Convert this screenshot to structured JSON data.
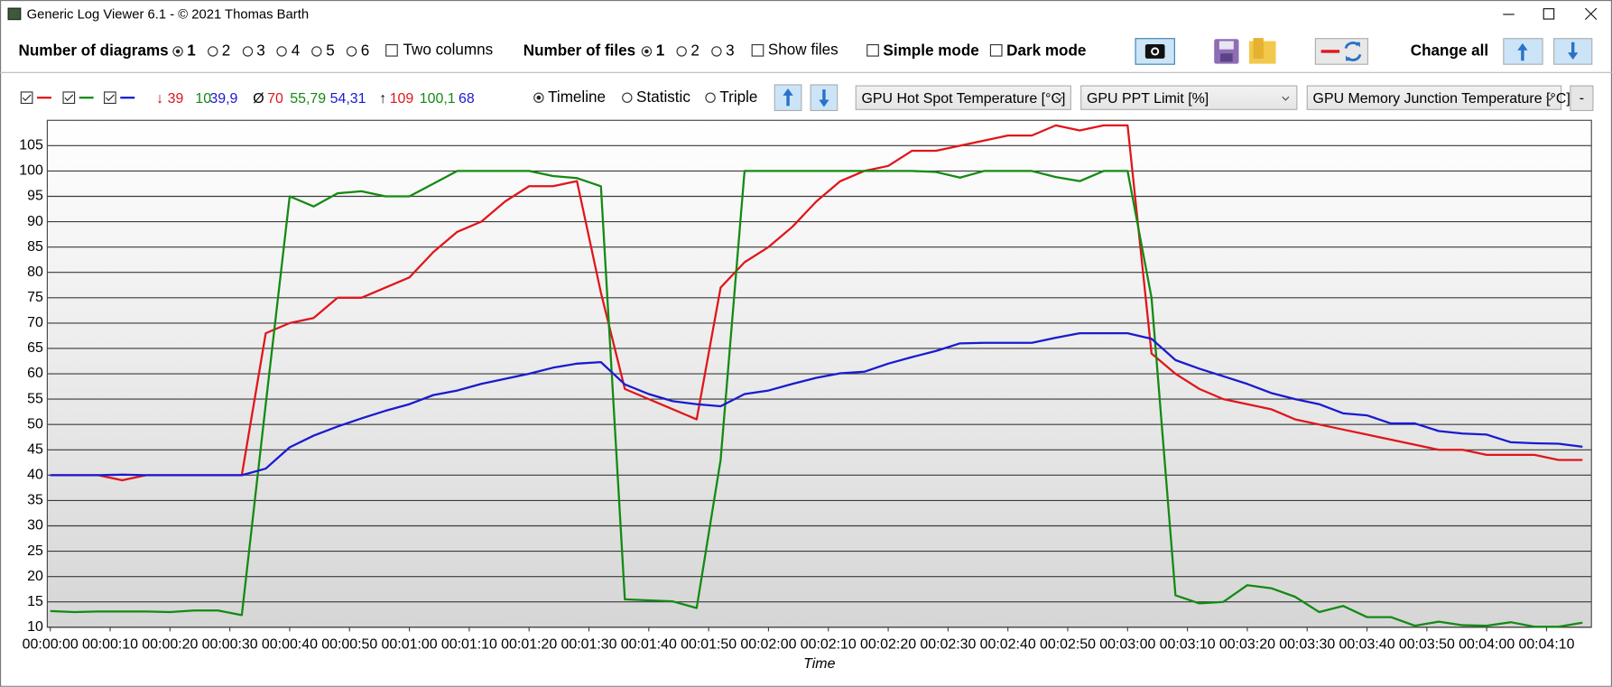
{
  "window": {
    "title": "Generic Log Viewer 6.1 - © 2021 Thomas Barth"
  },
  "toolbar": {
    "diagrams_label": "Number of diagrams",
    "diagram_options": [
      "1",
      "2",
      "3",
      "4",
      "5",
      "6"
    ],
    "two_columns": "Two columns",
    "files_label": "Number of files",
    "file_options": [
      "1",
      "2",
      "3"
    ],
    "show_files": "Show files",
    "simple_mode": "Simple mode",
    "dark_mode": "Dark mode",
    "change_all": "Change all"
  },
  "diagram_bar": {
    "min_symbol": "↓",
    "min_values": [
      "39",
      "10",
      "39,9"
    ],
    "avg_symbol": "Ø",
    "avg_values": [
      "70",
      "55,79",
      "54,31"
    ],
    "max_symbol": "↑",
    "max_values": [
      "109",
      "100,1",
      "68"
    ],
    "views": [
      "Timeline",
      "Statistic",
      "Triple"
    ],
    "remove": "-"
  },
  "chart_data": {
    "type": "line",
    "x_label": "Time",
    "x": [
      0,
      4,
      8,
      12,
      16,
      20,
      24,
      28,
      32,
      36,
      40,
      44,
      48,
      52,
      56,
      60,
      64,
      68,
      72,
      76,
      80,
      84,
      88,
      92,
      96,
      100,
      104,
      108,
      112,
      116,
      120,
      124,
      128,
      132,
      136,
      140,
      144,
      148,
      152,
      156,
      160,
      164,
      168,
      172,
      176,
      180,
      184,
      188,
      192,
      196,
      200,
      204,
      208,
      212,
      216,
      220,
      224,
      228,
      232,
      236,
      240,
      244,
      248,
      252,
      256
    ],
    "series": [
      {
        "name": "GPU Hot Spot Temperature [°C]",
        "color": "#e0161b",
        "values": [
          40,
          40,
          40,
          39,
          40,
          40,
          40,
          40,
          40,
          68,
          70,
          71,
          75,
          75,
          77,
          79,
          84,
          88,
          90,
          94,
          97,
          97,
          98,
          76,
          57,
          55,
          53,
          51,
          77,
          82,
          85,
          89,
          94,
          98,
          100,
          101,
          104,
          104,
          105,
          106,
          107,
          107,
          109,
          108,
          109,
          109,
          64,
          60,
          57,
          55,
          54,
          53,
          51,
          50,
          49,
          48,
          47,
          46,
          45,
          45,
          44,
          44,
          44,
          43,
          43
        ]
      },
      {
        "name": "GPU PPT Limit [%]",
        "color": "#138a13",
        "values": [
          13.2,
          13,
          13.1,
          13.1,
          13.1,
          13,
          13.3,
          13.3,
          12.4,
          54,
          95,
          93,
          95.6,
          96,
          95,
          95,
          97.5,
          100,
          100,
          100,
          100,
          99,
          98.6,
          97,
          15.5,
          15.3,
          15.1,
          13.8,
          43,
          100,
          100,
          100,
          100,
          100,
          100,
          100,
          100,
          99.8,
          98.7,
          100,
          100,
          100,
          98.8,
          98,
          100,
          100,
          75,
          16.3,
          14.7,
          15,
          18.3,
          17.7,
          16,
          13,
          14.2,
          12,
          12,
          10.3,
          11.1,
          10.4,
          10.3,
          11,
          10.1,
          10.1,
          10.9
        ]
      },
      {
        "name": "GPU Memory Junction Temperature [°C]",
        "color": "#1a1ad0",
        "values": [
          40,
          40,
          40,
          40.1,
          40,
          40,
          40,
          40,
          40,
          41.3,
          45.5,
          47.8,
          49.6,
          51.2,
          52.7,
          54,
          55.8,
          56.7,
          58,
          59,
          60,
          61.2,
          62,
          62.3,
          57.9,
          56,
          54.6,
          54,
          53.6,
          56,
          56.7,
          58,
          59.2,
          60.1,
          60.4,
          62,
          63.3,
          64.5,
          66,
          66.1,
          66.1,
          66.1,
          67.1,
          68,
          68,
          68,
          66.9,
          62.7,
          61,
          59.5,
          58,
          56.2,
          55,
          54,
          52.2,
          51.8,
          50.2,
          50.2,
          48.7,
          48.2,
          48,
          46.5,
          46.3,
          46.2,
          45.6
        ]
      }
    ],
    "xlim": [
      -0.5,
      257.5
    ],
    "ylim": [
      10,
      110
    ],
    "yticks": [
      10,
      15,
      20,
      25,
      30,
      35,
      40,
      45,
      50,
      55,
      60,
      65,
      70,
      75,
      80,
      85,
      90,
      95,
      100,
      105
    ],
    "xticks": [
      {
        "value": 0,
        "label": "00:00:00"
      },
      {
        "value": 10,
        "label": "00:00:10"
      },
      {
        "value": 20,
        "label": "00:00:20"
      },
      {
        "value": 30,
        "label": "00:00:30"
      },
      {
        "value": 40,
        "label": "00:00:40"
      },
      {
        "value": 50,
        "label": "00:00:50"
      },
      {
        "value": 60,
        "label": "00:01:00"
      },
      {
        "value": 70,
        "label": "00:01:10"
      },
      {
        "value": 80,
        "label": "00:01:20"
      },
      {
        "value": 90,
        "label": "00:01:30"
      },
      {
        "value": 100,
        "label": "00:01:40"
      },
      {
        "value": 110,
        "label": "00:01:50"
      },
      {
        "value": 120,
        "label": "00:02:00"
      },
      {
        "value": 130,
        "label": "00:02:10"
      },
      {
        "value": 140,
        "label": "00:02:20"
      },
      {
        "value": 150,
        "label": "00:02:30"
      },
      {
        "value": 160,
        "label": "00:02:40"
      },
      {
        "value": 170,
        "label": "00:02:50"
      },
      {
        "value": 180,
        "label": "00:03:00"
      },
      {
        "value": 190,
        "label": "00:03:10"
      },
      {
        "value": 200,
        "label": "00:03:20"
      },
      {
        "value": 210,
        "label": "00:03:30"
      },
      {
        "value": 220,
        "label": "00:03:40"
      },
      {
        "value": 230,
        "label": "00:03:50"
      },
      {
        "value": 240,
        "label": "00:04:00"
      },
      {
        "value": 250,
        "label": "00:04:10"
      }
    ],
    "grid": true
  }
}
